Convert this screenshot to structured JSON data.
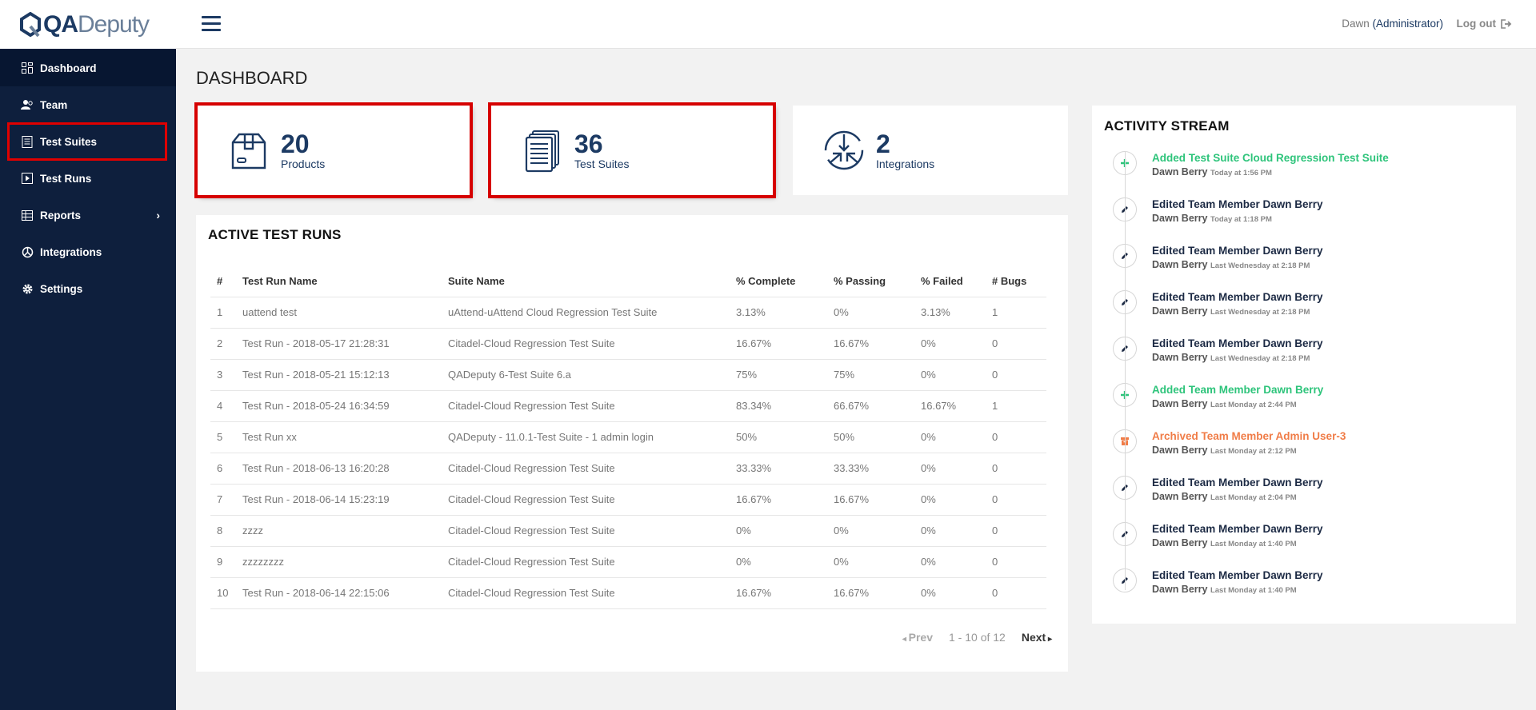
{
  "brand": {
    "strong": "QA",
    "light": "Deputy"
  },
  "sidebar": {
    "items": [
      {
        "label": "Dashboard",
        "icon": "dashboard-icon"
      },
      {
        "label": "Team",
        "icon": "team-icon"
      },
      {
        "label": "Test Suites",
        "icon": "test-suites-icon"
      },
      {
        "label": "Test Runs",
        "icon": "test-runs-icon"
      },
      {
        "label": "Reports",
        "icon": "reports-icon"
      },
      {
        "label": "Integrations",
        "icon": "integrations-icon"
      },
      {
        "label": "Settings",
        "icon": "settings-icon"
      }
    ]
  },
  "header": {
    "user_name": "Dawn",
    "user_role": "(Administrator)",
    "logout": "Log out"
  },
  "page_title": "DASHBOARD",
  "stats": [
    {
      "value": "20",
      "label": "Products",
      "icon": "box-icon"
    },
    {
      "value": "36",
      "label": "Test Suites",
      "icon": "documents-icon"
    },
    {
      "value": "2",
      "label": "Integrations",
      "icon": "integrations-icon"
    }
  ],
  "runs": {
    "title": "ACTIVE TEST RUNS",
    "columns": [
      "#",
      "Test Run Name",
      "Suite Name",
      "% Complete",
      "% Passing",
      "% Failed",
      "# Bugs"
    ],
    "rows": [
      [
        "1",
        "uattend test",
        "uAttend-uAttend Cloud Regression Test Suite",
        "3.13%",
        "0%",
        "3.13%",
        "1"
      ],
      [
        "2",
        "Test Run - 2018-05-17 21:28:31",
        "Citadel-Cloud Regression Test Suite",
        "16.67%",
        "16.67%",
        "0%",
        "0"
      ],
      [
        "3",
        "Test Run - 2018-05-21 15:12:13",
        "QADeputy 6-Test Suite 6.a",
        "75%",
        "75%",
        "0%",
        "0"
      ],
      [
        "4",
        "Test Run - 2018-05-24 16:34:59",
        "Citadel-Cloud Regression Test Suite",
        "83.34%",
        "66.67%",
        "16.67%",
        "1"
      ],
      [
        "5",
        "Test Run xx",
        "QADeputy - 11.0.1-Test Suite - 1 admin login",
        "50%",
        "50%",
        "0%",
        "0"
      ],
      [
        "6",
        "Test Run - 2018-06-13 16:20:28",
        "Citadel-Cloud Regression Test Suite",
        "33.33%",
        "33.33%",
        "0%",
        "0"
      ],
      [
        "7",
        "Test Run - 2018-06-14 15:23:19",
        "Citadel-Cloud Regression Test Suite",
        "16.67%",
        "16.67%",
        "0%",
        "0"
      ],
      [
        "8",
        "zzzz",
        "Citadel-Cloud Regression Test Suite",
        "0%",
        "0%",
        "0%",
        "0"
      ],
      [
        "9",
        "zzzzzzzz",
        "Citadel-Cloud Regression Test Suite",
        "0%",
        "0%",
        "0%",
        "0"
      ],
      [
        "10",
        "Test Run - 2018-06-14 22:15:06",
        "Citadel-Cloud Regression Test Suite",
        "16.67%",
        "16.67%",
        "0%",
        "0"
      ]
    ],
    "pager": {
      "prev": "Prev",
      "info": "1 - 10 of 12",
      "next": "Next"
    }
  },
  "activity": {
    "title": "ACTIVITY STREAM",
    "items": [
      {
        "type": "add",
        "color": "#2ec47b",
        "title": "Added Test Suite Cloud Regression Test Suite",
        "user": "Dawn Berry",
        "time": "Today at 1:56 PM"
      },
      {
        "type": "edit",
        "color": "#1c2a44",
        "title": "Edited Team Member Dawn Berry",
        "user": "Dawn Berry",
        "time": "Today at 1:18 PM"
      },
      {
        "type": "edit",
        "color": "#1c2a44",
        "title": "Edited Team Member Dawn Berry",
        "user": "Dawn Berry",
        "time": "Last Wednesday at 2:18 PM"
      },
      {
        "type": "edit",
        "color": "#1c2a44",
        "title": "Edited Team Member Dawn Berry",
        "user": "Dawn Berry",
        "time": "Last Wednesday at 2:18 PM"
      },
      {
        "type": "edit",
        "color": "#1c2a44",
        "title": "Edited Team Member Dawn Berry",
        "user": "Dawn Berry",
        "time": "Last Wednesday at 2:18 PM"
      },
      {
        "type": "add",
        "color": "#2ec47b",
        "title": "Added Team Member Dawn Berry",
        "user": "Dawn Berry",
        "time": "Last Monday at 2:44 PM"
      },
      {
        "type": "archive",
        "color": "#f07c47",
        "title": "Archived Team Member Admin User-3",
        "user": "Dawn Berry",
        "time": "Last Monday at 2:12 PM"
      },
      {
        "type": "edit",
        "color": "#1c2a44",
        "title": "Edited Team Member Dawn Berry",
        "user": "Dawn Berry",
        "time": "Last Monday at 2:04 PM"
      },
      {
        "type": "edit",
        "color": "#1c2a44",
        "title": "Edited Team Member Dawn Berry",
        "user": "Dawn Berry",
        "time": "Last Monday at 1:40 PM"
      },
      {
        "type": "edit",
        "color": "#1c2a44",
        "title": "Edited Team Member Dawn Berry",
        "user": "Dawn Berry",
        "time": "Last Monday at 1:40 PM"
      }
    ]
  }
}
